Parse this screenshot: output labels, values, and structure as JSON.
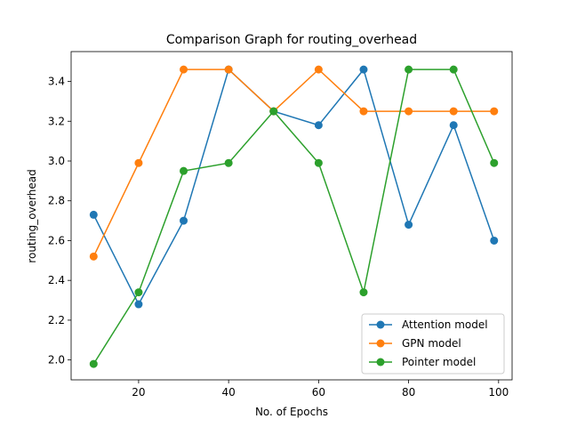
{
  "chart_data": {
    "type": "line",
    "title": "Comparison Graph for routing_overhead",
    "xlabel": "No. of Epochs",
    "ylabel": "routing_overhead",
    "xlim": [
      5,
      103
    ],
    "ylim": [
      1.9,
      3.55
    ],
    "xticks": [
      20,
      40,
      60,
      80,
      100
    ],
    "yticks": [
      2.0,
      2.2,
      2.4,
      2.6,
      2.8,
      3.0,
      3.2,
      3.4
    ],
    "grid": false,
    "legend_position": "lower right",
    "series": [
      {
        "name": "Attention model",
        "color": "#1f77b4",
        "x": [
          10,
          20,
          30,
          40,
          50,
          60,
          70,
          80,
          90,
          99
        ],
        "y": [
          2.73,
          2.28,
          2.7,
          3.46,
          3.25,
          3.18,
          3.46,
          2.68,
          3.18,
          2.6
        ]
      },
      {
        "name": "GPN model",
        "color": "#ff7f0e",
        "x": [
          10,
          20,
          30,
          40,
          50,
          60,
          70,
          80,
          90,
          99
        ],
        "y": [
          2.52,
          2.99,
          3.46,
          3.46,
          3.25,
          3.46,
          3.25,
          3.25,
          3.25,
          3.25
        ]
      },
      {
        "name": "Pointer model",
        "color": "#2ca02c",
        "x": [
          10,
          20,
          30,
          40,
          50,
          60,
          70,
          80,
          90,
          99
        ],
        "y": [
          1.98,
          2.34,
          2.95,
          2.99,
          3.25,
          2.99,
          2.34,
          3.46,
          3.46,
          2.99
        ]
      }
    ]
  }
}
